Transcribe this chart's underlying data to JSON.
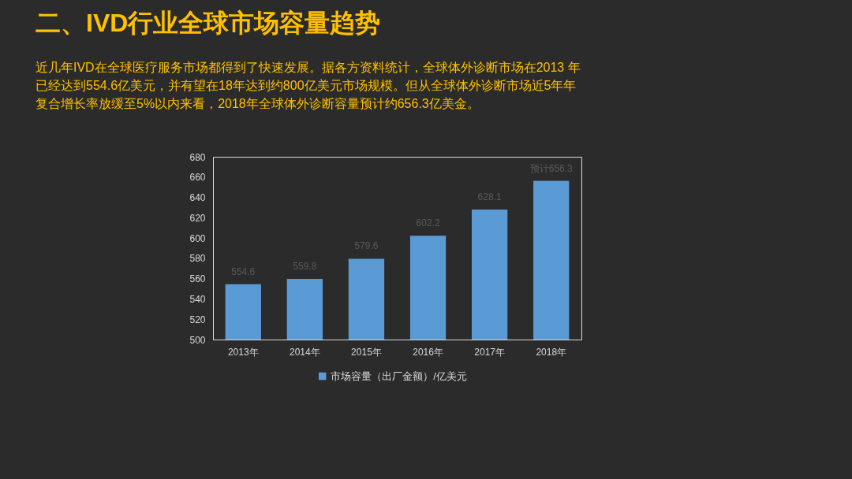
{
  "chart_data": {
    "type": "bar",
    "title": "二、IVD行业全球市场容量趋势",
    "subtitle": "近几年IVD在全球医疗服务市场都得到了快速发展。据各方资料统计，全球体外诊断市场在2013 年已经达到554.6亿美元，并有望在18年达到约800亿美元市场规模。但从全球体外诊断市场近5年年复合增长率放缓至5%以内来看，2018年全球体外诊断容量预计约656.3亿美金。",
    "categories": [
      "2013年",
      "2014年",
      "2015年",
      "2016年",
      "2017年",
      "2018年"
    ],
    "series": [
      {
        "name": "市场容量（出厂金额）/亿美元",
        "color": "#5b9bd5",
        "values": [
          554.6,
          559.8,
          579.6,
          602.2,
          628.1,
          656.3
        ],
        "value_labels": [
          "554.6",
          "559.8",
          "579.6",
          "602.2",
          "628.1",
          "预计656.3"
        ]
      }
    ],
    "ylim": [
      500,
      680
    ],
    "yticks": [
      500,
      520,
      540,
      560,
      580,
      600,
      620,
      640,
      660,
      680
    ],
    "grid": false,
    "legend": "bottom"
  }
}
